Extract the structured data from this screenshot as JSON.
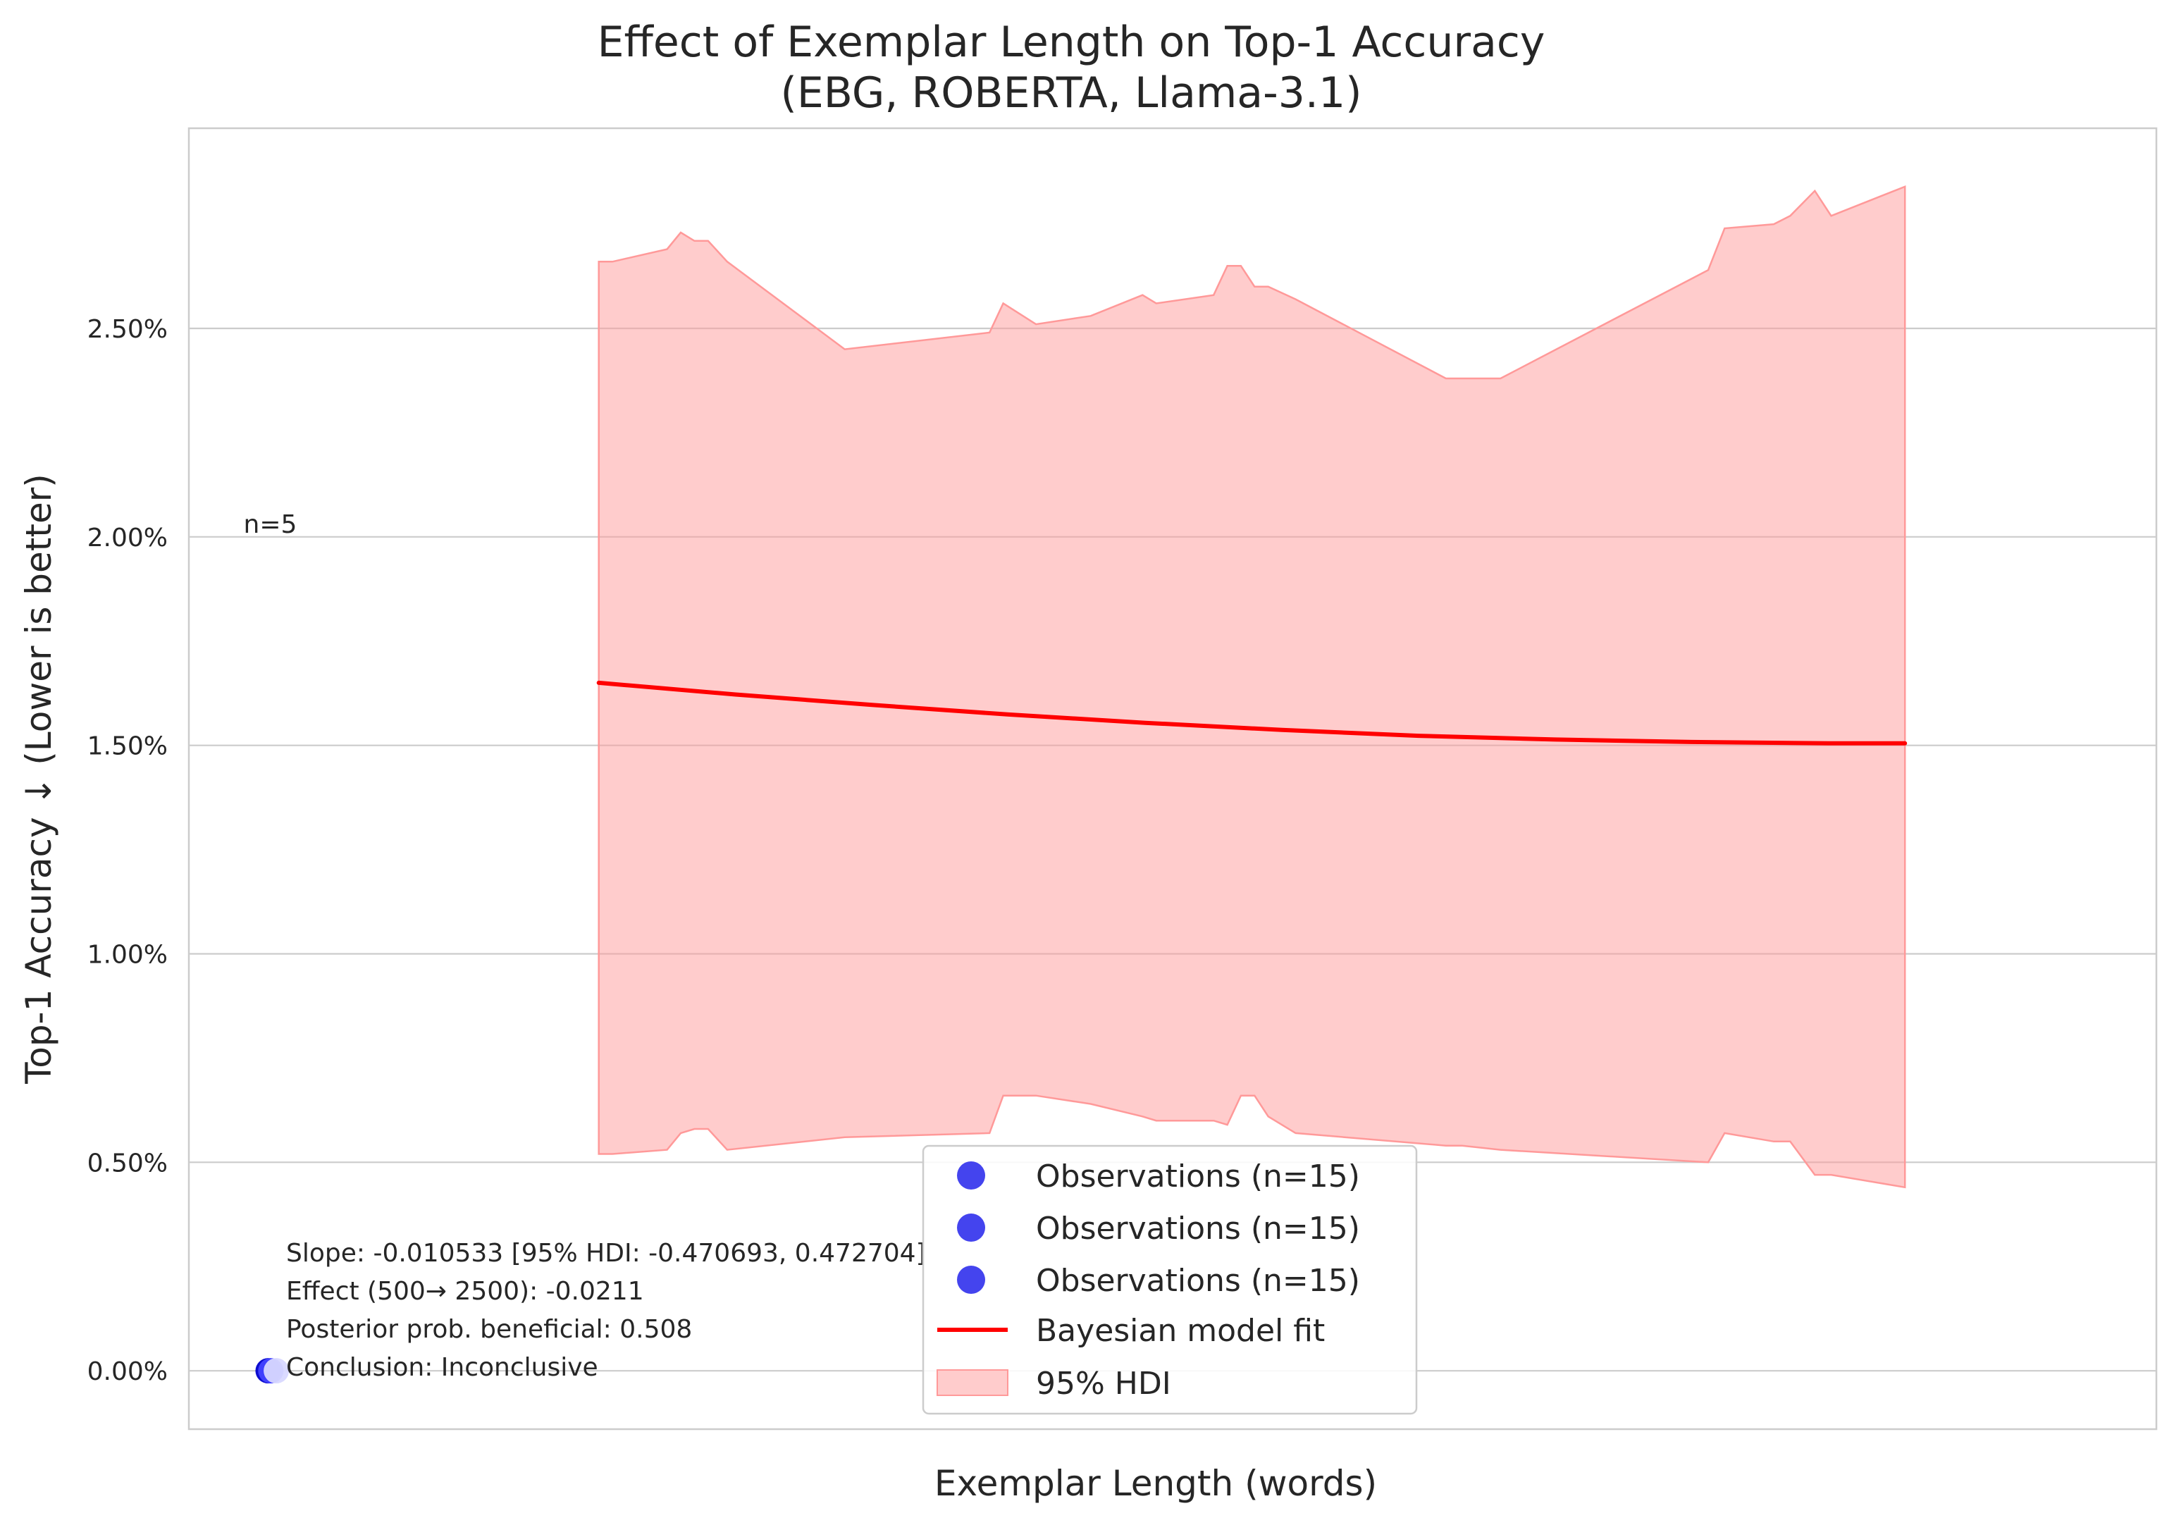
{
  "chart_data": {
    "type": "line",
    "title_lines": [
      "Effect of Exemplar Length on Top-1 Accuracy",
      "(EBG, ROBERTA, Llama-3.1)"
    ],
    "xlabel": "Exemplar Length (words)",
    "ylabel": "Top-1 Accuracy ↓ (Lower is better)",
    "ylim": [
      -0.0014,
      0.0298
    ],
    "xlim": [
      -100,
      3500
    ],
    "yticks": [
      {
        "value": 0.0,
        "label": "0.00%"
      },
      {
        "value": 0.005,
        "label": "0.50%"
      },
      {
        "value": 0.01,
        "label": "1.00%"
      },
      {
        "value": 0.015,
        "label": "1.50%"
      },
      {
        "value": 0.02,
        "label": "2.00%"
      },
      {
        "value": 0.025,
        "label": "2.50%"
      }
    ],
    "grid": true,
    "colors": {
      "fit": "#ff0000",
      "hdi": "#ff9999",
      "obs1": "#0000cc",
      "obs2": "#4444ff",
      "obs3": "#d8d8ff",
      "grid": "#cccccc",
      "frame": "#cccccc"
    },
    "observations": [
      {
        "name": "Observations (n=15)",
        "x": 45,
        "y": 0.0
      },
      {
        "name": "Observations (n=15)",
        "x": 50,
        "y": 0.0
      },
      {
        "name": "Observations (n=15)",
        "x": 60,
        "y": 0.0
      }
    ],
    "n_label": {
      "text": "n=5",
      "x": 0,
      "y": 0.0203
    },
    "fit": {
      "name": "Bayesian model fit",
      "x": [
        650,
        900,
        1150,
        1400,
        1650,
        1900,
        2150,
        2400,
        2650,
        2900,
        3040
      ],
      "y": [
        0.0165,
        0.01622,
        0.01597,
        0.01574,
        0.01554,
        0.01537,
        0.01523,
        0.01514,
        0.01508,
        0.01505,
        0.01505
      ]
    },
    "hdi": {
      "name": "95% HDI",
      "x": [
        650,
        675,
        775,
        800,
        825,
        850,
        885,
        1100,
        1365,
        1390,
        1450,
        1550,
        1645,
        1670,
        1775,
        1800,
        1825,
        1850,
        1875,
        1925,
        2200,
        2230,
        2300,
        2680,
        2710,
        2800,
        2830,
        2875,
        2905,
        3040
      ],
      "upper": [
        0.0266,
        0.0266,
        0.0269,
        0.0273,
        0.0271,
        0.0271,
        0.0266,
        0.0245,
        0.0249,
        0.0256,
        0.0251,
        0.0253,
        0.0258,
        0.0256,
        0.0258,
        0.0265,
        0.0265,
        0.026,
        0.026,
        0.0257,
        0.0238,
        0.0238,
        0.0238,
        0.0264,
        0.0274,
        0.0275,
        0.0277,
        0.0283,
        0.0277,
        0.0284
      ],
      "lower": [
        0.0052,
        0.0052,
        0.0053,
        0.0057,
        0.0058,
        0.0058,
        0.0053,
        0.0056,
        0.0057,
        0.0066,
        0.0066,
        0.0064,
        0.0061,
        0.006,
        0.006,
        0.0059,
        0.0066,
        0.0066,
        0.0061,
        0.0057,
        0.0054,
        0.0054,
        0.0053,
        0.005,
        0.0057,
        0.0055,
        0.0055,
        0.0047,
        0.0047,
        0.0044
      ]
    },
    "annotation_lines": [
      "Slope: -0.010533 [95% HDI: -0.470693, 0.472704]",
      "Effect (500→ 2500): -0.0211",
      "Posterior prob. beneficial: 0.508",
      "Conclusion: Inconclusive"
    ],
    "legend": {
      "placement": "lower-center",
      "entries": [
        {
          "label": "Observations (n=15)",
          "kind": "marker",
          "color": "#4444ee"
        },
        {
          "label": "Observations (n=15)",
          "kind": "marker",
          "color": "#4444ee"
        },
        {
          "label": "Observations (n=15)",
          "kind": "marker",
          "color": "#4444ee"
        },
        {
          "label": "Bayesian model fit",
          "kind": "line",
          "color": "#ff0000"
        },
        {
          "label": "95% HDI",
          "kind": "patch",
          "color": "#ffcccc"
        }
      ]
    }
  }
}
